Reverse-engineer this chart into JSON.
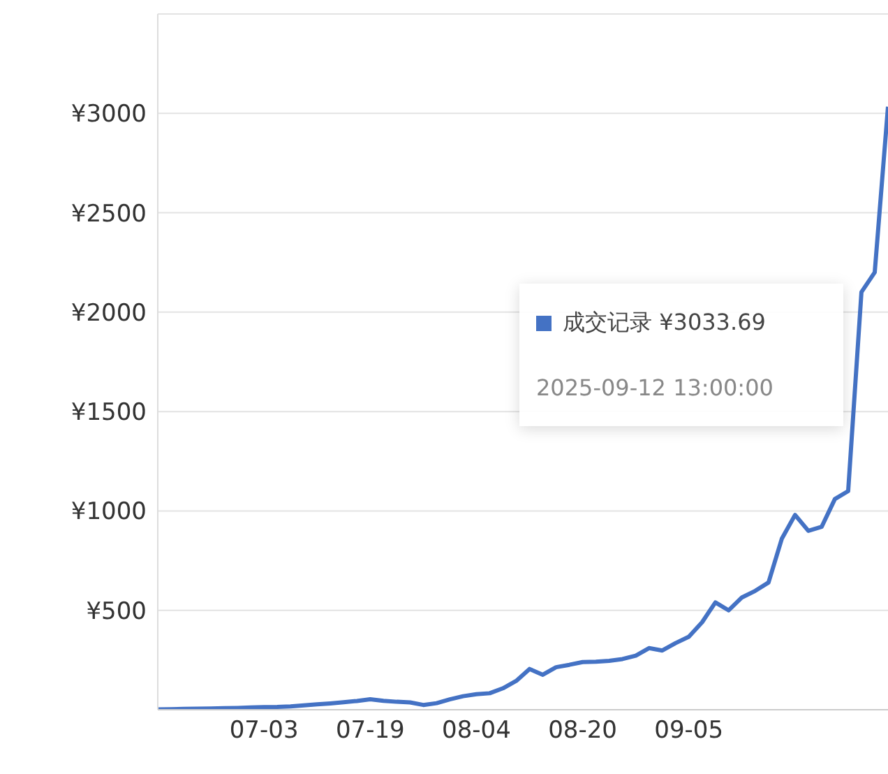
{
  "chart_data": {
    "type": "line",
    "categories": [
      null,
      null,
      null,
      null,
      null,
      null,
      null,
      null,
      "07-03",
      null,
      null,
      null,
      null,
      null,
      null,
      null,
      "07-19",
      null,
      null,
      null,
      null,
      null,
      null,
      null,
      "08-04",
      null,
      null,
      null,
      null,
      null,
      null,
      null,
      "08-20",
      null,
      null,
      null,
      null,
      null,
      null,
      null,
      "09-05",
      null,
      null,
      null,
      null,
      null,
      null,
      null,
      null,
      null,
      null,
      null,
      null,
      null,
      null,
      null
    ],
    "series": [
      {
        "color": "#4472c4",
        "values": [
          2,
          3,
          4,
          5,
          6,
          8,
          9,
          11,
          13,
          14,
          17,
          22,
          27,
          32,
          38,
          44,
          53,
          45,
          40,
          37,
          24,
          33,
          52,
          68,
          78,
          83,
          108,
          145,
          205,
          176,
          214,
          226,
          240,
          242,
          246,
          255,
          272,
          310,
          298,
          335,
          367,
          440,
          540,
          500,
          565,
          598,
          640,
          860,
          980,
          900,
          920,
          1060,
          1100,
          2101,
          2200,
          3033.69
        ]
      }
    ],
    "ylim": [
      0,
      3500
    ],
    "yticks": [
      {
        "value": 500,
        "label": "¥500"
      },
      {
        "value": 1000,
        "label": "¥1000"
      },
      {
        "value": 1500,
        "label": "¥1500"
      },
      {
        "value": 2000,
        "label": "¥2000"
      },
      {
        "value": 2500,
        "label": "¥2500"
      },
      {
        "value": 3000,
        "label": "¥3000"
      }
    ],
    "grid": "y",
    "marker": "none",
    "line_style": "solid",
    "annotations": [
      "成交记录 ¥3033.69",
      "2025-09-12 13:00:00"
    ]
  }
}
